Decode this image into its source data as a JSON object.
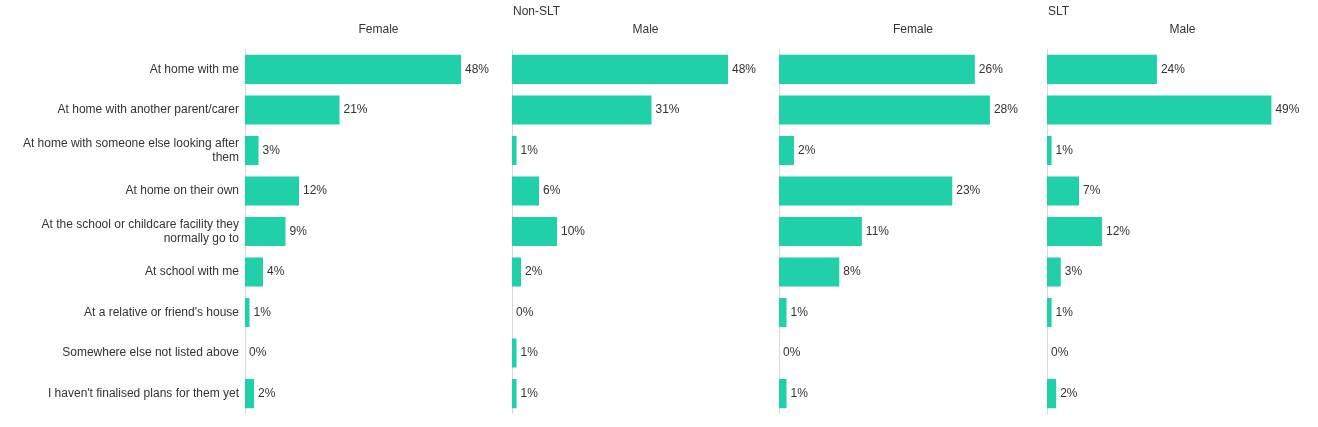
{
  "chart_data": [
    {
      "type": "bar",
      "orientation": "horizontal",
      "subtitle": "Female",
      "categories": [
        "At home with me",
        "At home with another parent/carer",
        "At home with someone else looking after them",
        "At home on their own",
        "At the school or childcare facility they normally go to",
        "At school with me",
        "At a relative or friend's house",
        "Somewhere else not listed above",
        "I haven't finalised plans for them yet"
      ],
      "values": [
        48,
        21,
        3,
        12,
        9,
        4,
        1,
        0,
        2
      ],
      "value_labels": [
        "48%",
        "21%",
        "3%",
        "12%",
        "9%",
        "4%",
        "1%",
        "0%",
        "2%"
      ],
      "color": "#20d0a8",
      "tick_labels": "y"
    },
    {
      "type": "bar",
      "orientation": "horizontal",
      "title": "Non-SLT",
      "subtitle": "Male",
      "categories": [
        null,
        null,
        null,
        null,
        null,
        null,
        null,
        null,
        null
      ],
      "values": [
        48,
        31,
        1,
        6,
        10,
        2,
        0,
        1,
        1
      ],
      "value_labels": [
        "48%",
        "31%",
        "1%",
        "6%",
        "10%",
        "2%",
        "0%",
        "1%",
        "1%"
      ],
      "color": "#20d0a8",
      "tick_labels": false
    },
    {
      "type": "bar",
      "orientation": "horizontal",
      "subtitle": "Female",
      "categories": [
        null,
        null,
        null,
        null,
        null,
        null,
        null,
        null,
        null
      ],
      "values": [
        26,
        28,
        2,
        23,
        11,
        8,
        1,
        0,
        1
      ],
      "value_labels": [
        "26%",
        "28%",
        "2%",
        "23%",
        "11%",
        "8%",
        "1%",
        "0%",
        "1%"
      ],
      "color": "#20d0a8",
      "tick_labels": false
    },
    {
      "type": "bar",
      "orientation": "horizontal",
      "title": "SLT",
      "subtitle": "Male",
      "categories": [
        null,
        null,
        null,
        null,
        null,
        null,
        null,
        null,
        null
      ],
      "values": [
        24,
        49,
        1,
        7,
        12,
        3,
        1,
        0,
        2
      ],
      "value_labels": [
        "24%",
        "49%",
        "1%",
        "7%",
        "12%",
        "3%",
        "1%",
        "0%",
        "2%"
      ],
      "color": "#20d0a8",
      "tick_labels": false
    }
  ]
}
